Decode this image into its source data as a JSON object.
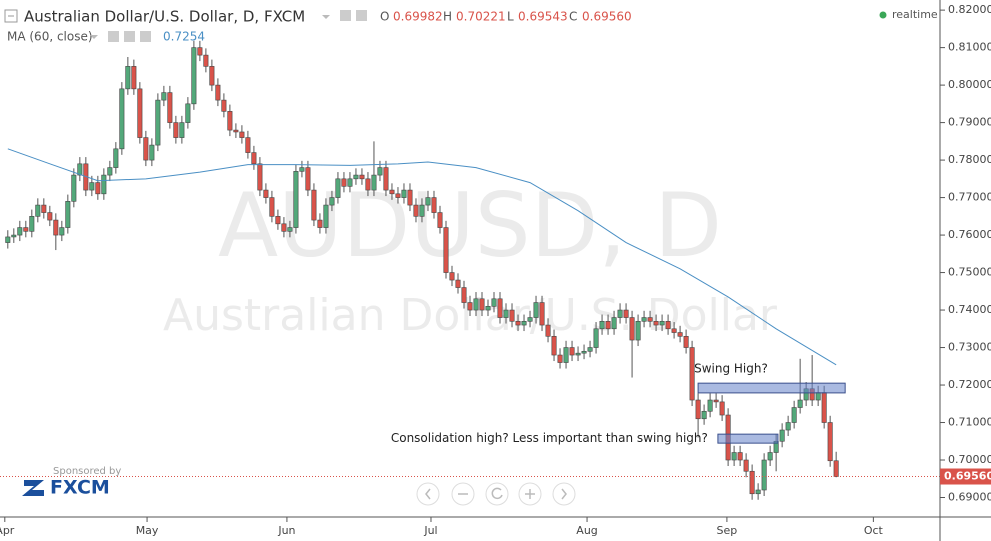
{
  "chart_data": {
    "type": "candlestick",
    "title": "Australian Dollar/U.S. Dollar, D, FXCM",
    "ohlc_header": {
      "open_label": "O",
      "open": "0.69982",
      "high_label": "H",
      "high": "0.70221",
      "low_label": "L",
      "low": "0.69543",
      "close_label": "C",
      "close": "0.69560"
    },
    "indicator": {
      "name": "MA (60, close)",
      "value": "0.7254",
      "color": "#4a8fc4",
      "x": [
        0,
        7,
        15,
        23,
        32,
        40,
        48,
        57,
        65,
        70,
        78,
        87,
        95,
        103,
        112,
        120,
        128,
        138
      ],
      "values": [
        0.783,
        0.779,
        0.7745,
        0.775,
        0.7768,
        0.7788,
        0.7788,
        0.7786,
        0.779,
        0.7795,
        0.778,
        0.774,
        0.7665,
        0.758,
        0.751,
        0.7435,
        0.735,
        0.7254
      ]
    },
    "status": "realtime",
    "watermark": {
      "symbol": "AUDUSD, D",
      "description": "Australian Dollar/U.S. Dollar"
    },
    "sponsor": {
      "caption": "Sponsored by",
      "brand": "FXCM"
    },
    "last_price": {
      "value": 0.6956,
      "label": "0.69560"
    },
    "up_color": "#53a87a",
    "down_color": "#d9534a",
    "candles": [
      [
        0.758,
        0.7613,
        0.7564,
        0.7595
      ],
      [
        0.7595,
        0.7618,
        0.7579,
        0.76
      ],
      [
        0.76,
        0.7638,
        0.7584,
        0.762
      ],
      [
        0.762,
        0.7638,
        0.7594,
        0.761
      ],
      [
        0.761,
        0.7668,
        0.7594,
        0.765
      ],
      [
        0.765,
        0.7698,
        0.7634,
        0.768
      ],
      [
        0.768,
        0.7698,
        0.7644,
        0.766
      ],
      [
        0.766,
        0.7678,
        0.7624,
        0.764
      ],
      [
        0.764,
        0.7658,
        0.756,
        0.76
      ],
      [
        0.76,
        0.7638,
        0.7584,
        0.762
      ],
      [
        0.762,
        0.7708,
        0.7604,
        0.769
      ],
      [
        0.769,
        0.7778,
        0.7674,
        0.776
      ],
      [
        0.776,
        0.7808,
        0.7744,
        0.779
      ],
      [
        0.779,
        0.7808,
        0.7704,
        0.772
      ],
      [
        0.772,
        0.7758,
        0.7704,
        0.774
      ],
      [
        0.774,
        0.7758,
        0.7694,
        0.771
      ],
      [
        0.771,
        0.7778,
        0.7694,
        0.776
      ],
      [
        0.776,
        0.7798,
        0.7744,
        0.778
      ],
      [
        0.778,
        0.7848,
        0.7764,
        0.783
      ],
      [
        0.783,
        0.8008,
        0.7814,
        0.799
      ],
      [
        0.799,
        0.8075,
        0.7974,
        0.805
      ],
      [
        0.805,
        0.8068,
        0.7974,
        0.799
      ],
      [
        0.799,
        0.8008,
        0.7844,
        0.786
      ],
      [
        0.786,
        0.7878,
        0.7784,
        0.78
      ],
      [
        0.78,
        0.7858,
        0.7784,
        0.784
      ],
      [
        0.784,
        0.7978,
        0.7824,
        0.796
      ],
      [
        0.796,
        0.7998,
        0.7944,
        0.798
      ],
      [
        0.798,
        0.7998,
        0.7884,
        0.79
      ],
      [
        0.79,
        0.7918,
        0.7844,
        0.786
      ],
      [
        0.786,
        0.7918,
        0.7844,
        0.79
      ],
      [
        0.79,
        0.7968,
        0.7884,
        0.795
      ],
      [
        0.795,
        0.8118,
        0.7934,
        0.81
      ],
      [
        0.81,
        0.8118,
        0.8064,
        0.808
      ],
      [
        0.808,
        0.8098,
        0.8034,
        0.805
      ],
      [
        0.805,
        0.8068,
        0.7984,
        0.8
      ],
      [
        0.8,
        0.8018,
        0.7944,
        0.796
      ],
      [
        0.796,
        0.7978,
        0.7914,
        0.793
      ],
      [
        0.793,
        0.7948,
        0.7864,
        0.788
      ],
      [
        0.788,
        0.7898,
        0.7859,
        0.7875
      ],
      [
        0.7875,
        0.7893,
        0.7844,
        0.786
      ],
      [
        0.786,
        0.7878,
        0.7804,
        0.782
      ],
      [
        0.782,
        0.7838,
        0.7774,
        0.779
      ],
      [
        0.779,
        0.7808,
        0.7704,
        0.772
      ],
      [
        0.772,
        0.7738,
        0.7684,
        0.77
      ],
      [
        0.77,
        0.7718,
        0.7634,
        0.765
      ],
      [
        0.765,
        0.7668,
        0.7614,
        0.763
      ],
      [
        0.763,
        0.7648,
        0.7594,
        0.761
      ],
      [
        0.761,
        0.7638,
        0.7594,
        0.762
      ],
      [
        0.762,
        0.7788,
        0.7604,
        0.777
      ],
      [
        0.777,
        0.7798,
        0.7754,
        0.778
      ],
      [
        0.778,
        0.7798,
        0.7704,
        0.772
      ],
      [
        0.772,
        0.7738,
        0.7624,
        0.764
      ],
      [
        0.764,
        0.7658,
        0.7604,
        0.762
      ],
      [
        0.762,
        0.7698,
        0.7604,
        0.768
      ],
      [
        0.768,
        0.7718,
        0.7664,
        0.77
      ],
      [
        0.77,
        0.7768,
        0.7684,
        0.775
      ],
      [
        0.775,
        0.7768,
        0.7714,
        0.773
      ],
      [
        0.773,
        0.7768,
        0.7714,
        0.775
      ],
      [
        0.775,
        0.7778,
        0.7734,
        0.776
      ],
      [
        0.776,
        0.7778,
        0.7734,
        0.775
      ],
      [
        0.775,
        0.7768,
        0.7704,
        0.772
      ],
      [
        0.772,
        0.785,
        0.7704,
        0.776
      ],
      [
        0.776,
        0.7798,
        0.7744,
        0.778
      ],
      [
        0.778,
        0.7798,
        0.7704,
        0.772
      ],
      [
        0.772,
        0.7738,
        0.7694,
        0.771
      ],
      [
        0.771,
        0.7728,
        0.7684,
        0.77
      ],
      [
        0.77,
        0.7738,
        0.7684,
        0.772
      ],
      [
        0.772,
        0.7738,
        0.7664,
        0.768
      ],
      [
        0.768,
        0.7698,
        0.7634,
        0.765
      ],
      [
        0.765,
        0.7698,
        0.7634,
        0.768
      ],
      [
        0.768,
        0.7718,
        0.7664,
        0.77
      ],
      [
        0.77,
        0.7718,
        0.7644,
        0.766
      ],
      [
        0.766,
        0.7678,
        0.7604,
        0.762
      ],
      [
        0.762,
        0.7638,
        0.7484,
        0.75
      ],
      [
        0.75,
        0.7518,
        0.7464,
        0.748
      ],
      [
        0.748,
        0.7498,
        0.7444,
        0.746
      ],
      [
        0.746,
        0.7478,
        0.7404,
        0.742
      ],
      [
        0.742,
        0.7438,
        0.7384,
        0.74
      ],
      [
        0.74,
        0.7448,
        0.7384,
        0.743
      ],
      [
        0.743,
        0.7448,
        0.7384,
        0.74
      ],
      [
        0.74,
        0.7428,
        0.7384,
        0.741
      ],
      [
        0.741,
        0.7448,
        0.7394,
        0.743
      ],
      [
        0.743,
        0.7448,
        0.7364,
        0.738
      ],
      [
        0.738,
        0.7418,
        0.7364,
        0.74
      ],
      [
        0.74,
        0.7418,
        0.7354,
        0.737
      ],
      [
        0.737,
        0.7388,
        0.7344,
        0.736
      ],
      [
        0.736,
        0.7388,
        0.7344,
        0.737
      ],
      [
        0.737,
        0.7398,
        0.7354,
        0.738
      ],
      [
        0.738,
        0.7438,
        0.7364,
        0.742
      ],
      [
        0.742,
        0.7438,
        0.7344,
        0.736
      ],
      [
        0.736,
        0.7378,
        0.7314,
        0.733
      ],
      [
        0.733,
        0.7348,
        0.7264,
        0.728
      ],
      [
        0.728,
        0.7298,
        0.7244,
        0.726
      ],
      [
        0.726,
        0.7318,
        0.7244,
        0.73
      ],
      [
        0.73,
        0.7318,
        0.7264,
        0.728
      ],
      [
        0.728,
        0.7303,
        0.7264,
        0.7285
      ],
      [
        0.7285,
        0.7308,
        0.7269,
        0.729
      ],
      [
        0.729,
        0.7318,
        0.7274,
        0.73
      ],
      [
        0.73,
        0.7368,
        0.7284,
        0.735
      ],
      [
        0.735,
        0.7388,
        0.7334,
        0.737
      ],
      [
        0.737,
        0.7388,
        0.7334,
        0.735
      ],
      [
        0.735,
        0.7398,
        0.7334,
        0.738
      ],
      [
        0.738,
        0.7418,
        0.7364,
        0.74
      ],
      [
        0.74,
        0.7418,
        0.7364,
        0.738
      ],
      [
        0.738,
        0.7398,
        0.722,
        0.732
      ],
      [
        0.732,
        0.7388,
        0.7304,
        0.737
      ],
      [
        0.737,
        0.7398,
        0.7354,
        0.738
      ],
      [
        0.738,
        0.7398,
        0.7354,
        0.737
      ],
      [
        0.737,
        0.7388,
        0.7344,
        0.736
      ],
      [
        0.736,
        0.7388,
        0.7344,
        0.737
      ],
      [
        0.737,
        0.7388,
        0.7334,
        0.735
      ],
      [
        0.735,
        0.7368,
        0.7324,
        0.734
      ],
      [
        0.734,
        0.7358,
        0.7314,
        0.733
      ],
      [
        0.733,
        0.7348,
        0.7284,
        0.73
      ],
      [
        0.73,
        0.7318,
        0.7144,
        0.716
      ],
      [
        0.716,
        0.7178,
        0.706,
        0.711
      ],
      [
        0.711,
        0.7148,
        0.7094,
        0.713
      ],
      [
        0.713,
        0.7178,
        0.7114,
        0.716
      ],
      [
        0.716,
        0.7178,
        0.7139,
        0.7155
      ],
      [
        0.7155,
        0.7173,
        0.7104,
        0.712
      ],
      [
        0.712,
        0.7138,
        0.6984,
        0.7
      ],
      [
        0.7,
        0.7038,
        0.6984,
        0.702
      ],
      [
        0.702,
        0.7038,
        0.6984,
        0.7
      ],
      [
        0.7,
        0.7018,
        0.6954,
        0.697
      ],
      [
        0.697,
        0.6988,
        0.6894,
        0.691
      ],
      [
        0.691,
        0.6938,
        0.6894,
        0.692
      ],
      [
        0.692,
        0.7018,
        0.6904,
        0.7
      ],
      [
        0.7,
        0.7038,
        0.6984,
        0.702
      ],
      [
        0.702,
        0.7068,
        0.697,
        0.705
      ],
      [
        0.705,
        0.7098,
        0.7034,
        0.708
      ],
      [
        0.708,
        0.7118,
        0.7064,
        0.71
      ],
      [
        0.71,
        0.7158,
        0.7084,
        0.714
      ],
      [
        0.714,
        0.727,
        0.7124,
        0.716
      ],
      [
        0.716,
        0.7208,
        0.7144,
        0.719
      ],
      [
        0.719,
        0.728,
        0.7144,
        0.716
      ],
      [
        0.716,
        0.7198,
        0.7144,
        0.718
      ],
      [
        0.718,
        0.7198,
        0.7084,
        0.71
      ],
      [
        0.71,
        0.7118,
        0.6982,
        0.6998
      ],
      [
        0.6998,
        0.7022,
        0.6954,
        0.6956
      ]
    ],
    "xlim": [
      -1.3,
      155.3
    ],
    "xticks": [
      {
        "value": -0.5,
        "label": "Apr"
      },
      {
        "value": 23.2,
        "label": "May"
      },
      {
        "value": 46.5,
        "label": "Jun"
      },
      {
        "value": 70.5,
        "label": "Jul"
      },
      {
        "value": 96.5,
        "label": "Aug"
      },
      {
        "value": 119.8,
        "label": "Sep"
      },
      {
        "value": 144.2,
        "label": "Oct"
      }
    ],
    "ylim": [
      0.6848,
      0.8227
    ],
    "yticks": [
      {
        "value": 0.69,
        "label": "0.69000"
      },
      {
        "value": 0.7,
        "label": "0.70000"
      },
      {
        "value": 0.71,
        "label": "0.71000"
      },
      {
        "value": 0.72,
        "label": "0.72000"
      },
      {
        "value": 0.73,
        "label": "0.73000"
      },
      {
        "value": 0.74,
        "label": "0.74000"
      },
      {
        "value": 0.75,
        "label": "0.75000"
      },
      {
        "value": 0.76,
        "label": "0.76000"
      },
      {
        "value": 0.77,
        "label": "0.77000"
      },
      {
        "value": 0.78,
        "label": "0.78000"
      },
      {
        "value": 0.79,
        "label": "0.79000"
      },
      {
        "value": 0.8,
        "label": "0.80000"
      },
      {
        "value": 0.81,
        "label": "0.81000"
      },
      {
        "value": 0.82,
        "label": "0.82000"
      }
    ],
    "grid": false,
    "zones": [
      {
        "label": "Swing High?",
        "top": 0.7205,
        "bottom": 0.7179,
        "start": 115,
        "end": 139.5,
        "label_side": "above"
      },
      {
        "label": "Consolidation high? Less important than swing high?",
        "top": 0.7069,
        "bottom": 0.7045,
        "start": 118.3,
        "end": 128.3,
        "label_side": "left"
      }
    ]
  }
}
